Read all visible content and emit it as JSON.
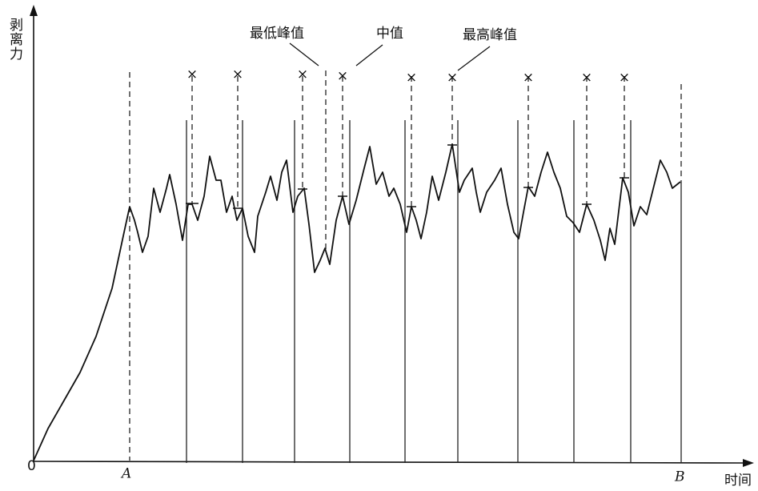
{
  "axes": {
    "y_label": "剥离力",
    "x_label": "时间",
    "origin": "0",
    "point_a": "A",
    "point_b": "B"
  },
  "annotations": {
    "lowest_peak": "最低峰值",
    "median": "中值",
    "highest_peak": "最高峰值"
  }
}
